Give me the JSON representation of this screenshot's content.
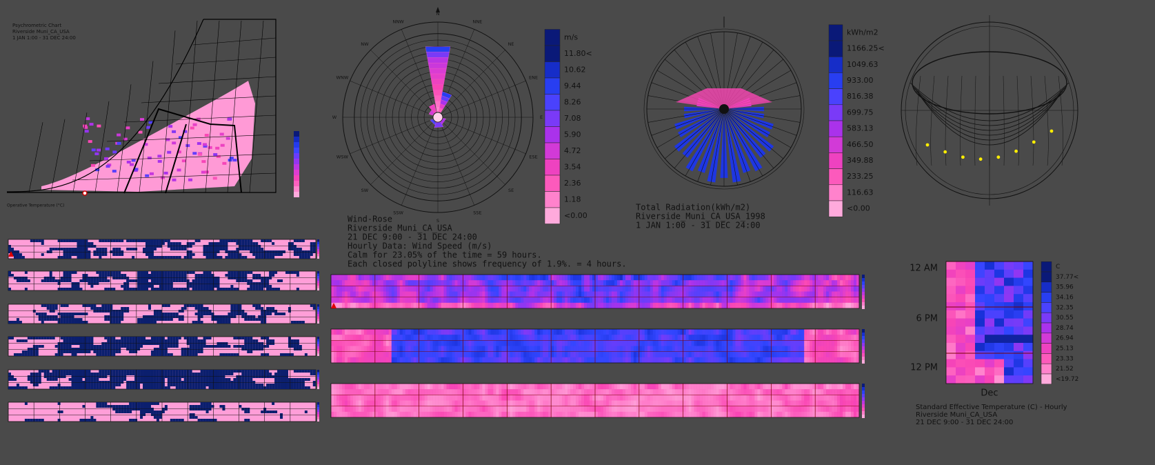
{
  "psychrometric": {
    "title": "Psychrometric Chart",
    "location": "Riverside Muni_CA_USA",
    "period": "1 JAN 1:00 - 31 DEC 24:00",
    "x_axis": "Operative Temperature (°C)"
  },
  "wind_rose": {
    "directions": [
      "N",
      "NNE",
      "NE",
      "ENE",
      "E",
      "ESE",
      "SE",
      "SSE",
      "S",
      "SSW",
      "SW",
      "WSW",
      "W",
      "WNW",
      "NW",
      "NNW"
    ],
    "legend": {
      "unit": "m/s",
      "labels": [
        "11.80<",
        "10.62",
        "9.44",
        "8.26",
        "7.08",
        "5.90",
        "4.72",
        "3.54",
        "2.36",
        "1.18",
        "<0.00"
      ]
    },
    "caption": [
      "Wind-Rose",
      "Riverside Muni_CA_USA",
      "21 DEC 9:00 - 31 DEC 24:00",
      "Hourly Data: Wind Speed (m/s)",
      "Calm for 23.05% of the time = 59 hours.",
      "Each closed polyline shows frequency of 1.9%. = 4 hours."
    ]
  },
  "radiation": {
    "legend": {
      "unit": "kWh/m2",
      "labels": [
        "1166.25<",
        "1049.63",
        "933.00",
        "816.38",
        "699.75",
        "583.13",
        "466.50",
        "349.88",
        "233.25",
        "116.63",
        "<0.00"
      ]
    },
    "caption": [
      "Total Radiation(kWh/m2)",
      "Riverside_Muni_CA_USA_1998",
      "1 JAN 1:00 - 31 DEC 24:00"
    ]
  },
  "set_heatmap": {
    "hours": [
      "12 AM",
      "6 PM",
      "12 PM"
    ],
    "month": "Dec",
    "legend": {
      "unit": "C",
      "labels": [
        "37.77<",
        "35.96",
        "34.16",
        "32.35",
        "30.55",
        "28.74",
        "26.94",
        "25.13",
        "23.33",
        "21.52",
        "<19.72"
      ]
    },
    "caption": [
      "Standard Effective Temperature (C) - Hourly",
      "Riverside Muni_CA_USA",
      "21 DEC 9:00 - 31 DEC 24:00"
    ]
  }
}
